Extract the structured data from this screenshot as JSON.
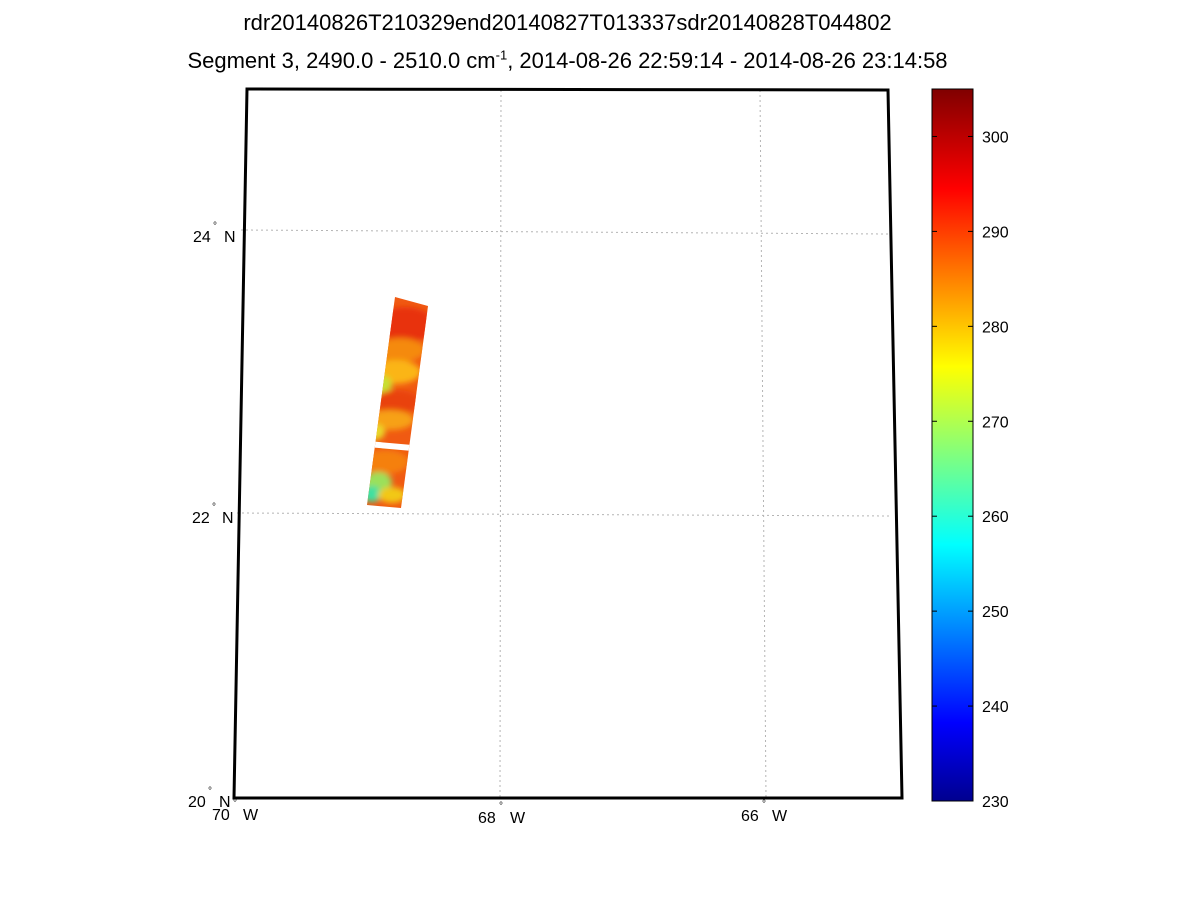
{
  "title": {
    "line1": "rdr20140826T210329end20140827T013337sdr20140828T044802",
    "line2_prefix": "Segment 3, 2490.0 - 2510.0 cm",
    "line2_sup": "-1",
    "line2_suffix": ", 2014-08-26 22:59:14 - 2014-08-26 23:14:58"
  },
  "map": {
    "lat_labels": [
      {
        "deg": "24",
        "hemi": "N",
        "value": 24
      },
      {
        "deg": "22",
        "hemi": "N",
        "value": 22
      },
      {
        "deg": "20",
        "hemi": "N",
        "value": 20
      }
    ],
    "lon_labels": [
      {
        "deg": "70",
        "hemi": "W",
        "value": -70
      },
      {
        "deg": "68",
        "hemi": "W",
        "value": -68
      },
      {
        "deg": "66",
        "hemi": "W",
        "value": -66
      }
    ],
    "lat_range": [
      20,
      25
    ],
    "lon_range": [
      -70,
      -65
    ],
    "grid": "dotted",
    "swath": {
      "description": "brightness temperature swath, mostly 280-300 K with greener 260-275 K patches at the southern end",
      "lat_range": [
        22.05,
        23.55
      ],
      "lon_range": [
        -69.05,
        -68.6
      ]
    }
  },
  "colorbar": {
    "colormap": "jet",
    "min": 230,
    "max": 305,
    "ticks": [
      "230",
      "240",
      "250",
      "260",
      "270",
      "280",
      "290",
      "300"
    ]
  },
  "chart_data": {
    "type": "heatmap",
    "title": "rdr20140826T210329end20140827T013337sdr20140828T044802",
    "subtitle": "Segment 3, 2490.0 - 2510.0 cm-1, 2014-08-26 22:59:14 - 2014-08-26 23:14:58",
    "xlabel": "",
    "ylabel": "",
    "x_ticks": [
      "70° W",
      "68° W",
      "66° W"
    ],
    "y_ticks": [
      "20° N",
      "22° N",
      "24° N"
    ],
    "xlim": [
      -70,
      -65
    ],
    "ylim": [
      20,
      25
    ],
    "color_range": [
      230,
      305
    ],
    "colorbar_ticks": [
      230,
      240,
      250,
      260,
      270,
      280,
      290,
      300
    ]
  }
}
